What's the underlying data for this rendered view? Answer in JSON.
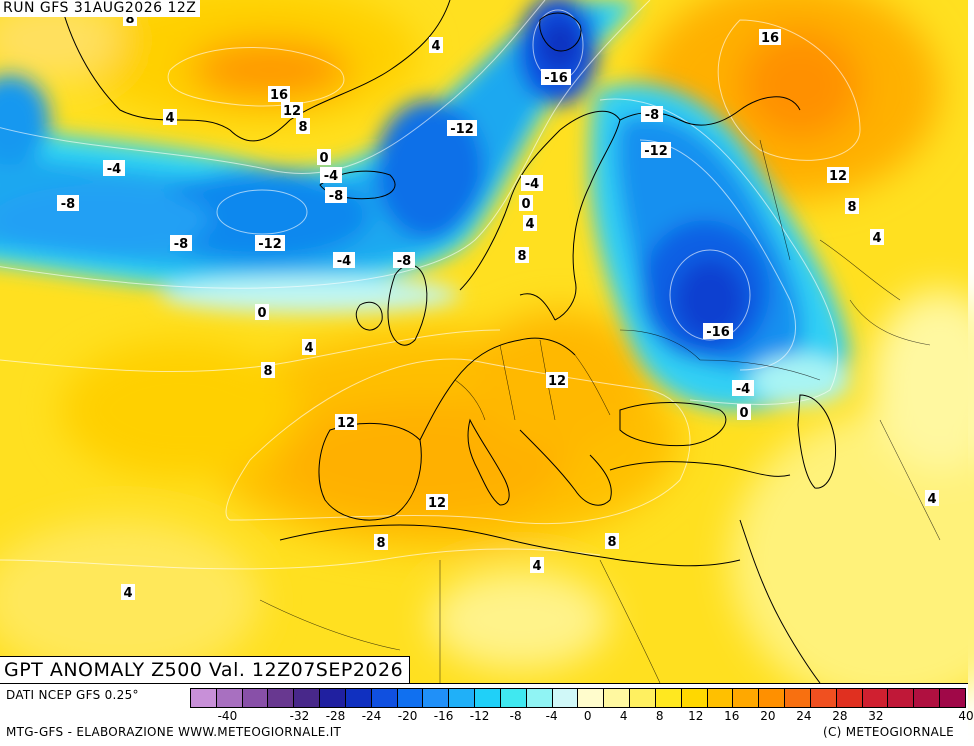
{
  "header": {
    "run_label": "RUN GFS 31AUG2026 12Z"
  },
  "map": {
    "title": "GPT ANOMALY Z500 Val. 12Z07SEP2026",
    "contour_labels": [
      {
        "text": "8"
      },
      {
        "text": "4"
      },
      {
        "text": "16"
      },
      {
        "text": "16"
      },
      {
        "text": "12"
      },
      {
        "text": "8"
      },
      {
        "text": "4"
      },
      {
        "text": "-16"
      },
      {
        "text": "-4"
      },
      {
        "text": "-8"
      },
      {
        "text": "-12"
      },
      {
        "text": "-12"
      },
      {
        "text": "0"
      },
      {
        "text": "-4"
      },
      {
        "text": "-4"
      },
      {
        "text": "-8"
      },
      {
        "text": "-8"
      },
      {
        "text": "-12"
      },
      {
        "text": "-8"
      },
      {
        "text": "-4"
      },
      {
        "text": "-8"
      },
      {
        "text": "0"
      },
      {
        "text": "4"
      },
      {
        "text": "8"
      },
      {
        "text": "12"
      },
      {
        "text": "8"
      },
      {
        "text": "4"
      },
      {
        "text": "0"
      },
      {
        "text": "4"
      },
      {
        "text": "8"
      },
      {
        "text": "-16"
      },
      {
        "text": "12"
      },
      {
        "text": "-4"
      },
      {
        "text": "0"
      },
      {
        "text": "12"
      },
      {
        "text": "12"
      },
      {
        "text": "8"
      },
      {
        "text": "8"
      },
      {
        "text": "4"
      },
      {
        "text": "4"
      },
      {
        "text": "4"
      }
    ]
  },
  "legend": {
    "data_source": "DATI NCEP GFS 0.25°",
    "colors": [
      "#c890d8",
      "#a870c0",
      "#8850a8",
      "#683890",
      "#48288a",
      "#2020a0",
      "#1030c0",
      "#1050e0",
      "#1070f0",
      "#2090f8",
      "#20b0f8",
      "#20d0f8",
      "#40e8f0",
      "#90f4f4",
      "#d0f8f8",
      "#fffccc",
      "#fff8a0",
      "#fff060",
      "#ffe820",
      "#ffd800",
      "#ffc000",
      "#ffa800",
      "#ff9000",
      "#f87010",
      "#f05020",
      "#e03020",
      "#d02030",
      "#c01838",
      "#b01040",
      "#a00848"
    ],
    "tick_labels": [
      "-40",
      "-32",
      "-28",
      "-24",
      "-20",
      "-16",
      "-12",
      "-8",
      "-4",
      "0",
      "4",
      "8",
      "12",
      "16",
      "20",
      "24",
      "28",
      "32",
      "40"
    ]
  },
  "footer": {
    "credit_left": "MTG-GFS - ELABORAZIONE WWW.METEOGIORNALE.IT",
    "credit_right": "(C) METEOGIORNALE"
  }
}
